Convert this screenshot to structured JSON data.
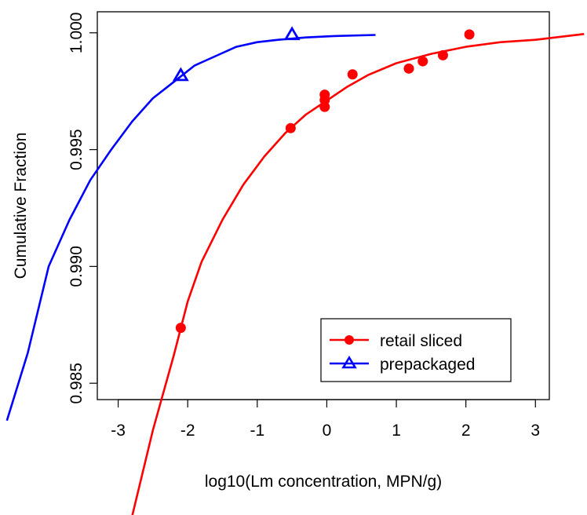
{
  "chart_data": {
    "type": "scatter",
    "title": "",
    "xlabel": "log10(Lm concentration, MPN/g)",
    "ylabel": "Cumulative Fraction",
    "xlim": [
      -3.3,
      3.2
    ],
    "ylim": [
      0.9843,
      1.0009
    ],
    "x_ticks": [
      "-3",
      "-2",
      "-1",
      "0",
      "1",
      "2",
      "3"
    ],
    "x_tick_values": [
      -3,
      -2,
      -1,
      0,
      1,
      2,
      3
    ],
    "y_ticks": [
      "0.985",
      "0.990",
      "0.995",
      "1.000"
    ],
    "y_tick_values": [
      0.985,
      0.99,
      0.995,
      1.0
    ],
    "grid": false,
    "legend": {
      "position": "bottom-right"
    },
    "series": [
      {
        "name": "retail sliced",
        "color": "#ff0000",
        "marker": "filled-circle",
        "points": [
          {
            "x": -2.1,
            "y": 0.98737
          },
          {
            "x": -0.52,
            "y": 0.99592
          },
          {
            "x": -0.03,
            "y": 0.99683
          },
          {
            "x": -0.03,
            "y": 0.99712
          },
          {
            "x": -0.03,
            "y": 0.99735
          },
          {
            "x": 0.37,
            "y": 0.99822
          },
          {
            "x": 1.18,
            "y": 0.99847
          },
          {
            "x": 1.38,
            "y": 0.99878
          },
          {
            "x": 1.67,
            "y": 0.99904
          },
          {
            "x": 2.05,
            "y": 0.99993
          }
        ],
        "curve": [
          {
            "x": -2.8,
            "y": 0.9793
          },
          {
            "x": -2.5,
            "y": 0.983
          },
          {
            "x": -2.2,
            "y": 0.9862
          },
          {
            "x": -2.0,
            "y": 0.9885
          },
          {
            "x": -1.8,
            "y": 0.9902
          },
          {
            "x": -1.5,
            "y": 0.992
          },
          {
            "x": -1.2,
            "y": 0.9935
          },
          {
            "x": -0.9,
            "y": 0.9947
          },
          {
            "x": -0.6,
            "y": 0.9957
          },
          {
            "x": -0.3,
            "y": 0.9965
          },
          {
            "x": 0.0,
            "y": 0.9971
          },
          {
            "x": 0.3,
            "y": 0.9977
          },
          {
            "x": 0.6,
            "y": 0.9982
          },
          {
            "x": 1.0,
            "y": 0.9987
          },
          {
            "x": 1.5,
            "y": 0.9991
          },
          {
            "x": 2.0,
            "y": 0.9994
          },
          {
            "x": 2.5,
            "y": 0.9996
          },
          {
            "x": 3.0,
            "y": 0.9997
          },
          {
            "x": 3.7,
            "y": 0.99995
          }
        ]
      },
      {
        "name": "prepackaged",
        "color": "#0000ff",
        "marker": "open-triangle",
        "points": [
          {
            "x": -2.1,
            "y": 0.99817
          },
          {
            "x": -0.5,
            "y": 0.99992
          }
        ],
        "curve": [
          {
            "x": -4.6,
            "y": 0.9834
          },
          {
            "x": -4.3,
            "y": 0.9863
          },
          {
            "x": -4.0,
            "y": 0.99
          },
          {
            "x": -3.7,
            "y": 0.992
          },
          {
            "x": -3.4,
            "y": 0.9937
          },
          {
            "x": -3.1,
            "y": 0.995
          },
          {
            "x": -2.8,
            "y": 0.9962
          },
          {
            "x": -2.5,
            "y": 0.9972
          },
          {
            "x": -2.2,
            "y": 0.9979
          },
          {
            "x": -1.9,
            "y": 0.9986
          },
          {
            "x": -1.6,
            "y": 0.999
          },
          {
            "x": -1.3,
            "y": 0.9994
          },
          {
            "x": -1.0,
            "y": 0.9996
          },
          {
            "x": -0.7,
            "y": 0.9997
          },
          {
            "x": -0.3,
            "y": 0.9998
          },
          {
            "x": 0.1,
            "y": 0.99986
          },
          {
            "x": 0.7,
            "y": 0.99991
          }
        ]
      }
    ]
  }
}
